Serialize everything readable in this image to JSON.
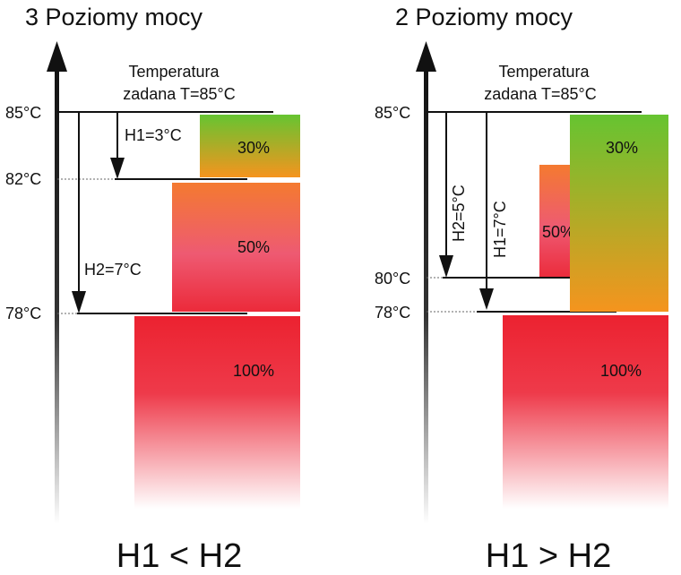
{
  "left_panel": {
    "title": "3 Poziomy mocy",
    "setpoint_line1": "Temperatura",
    "setpoint_line2": "zadana T=85°C",
    "temp_labels": [
      "85°C",
      "82°C",
      "78°C"
    ],
    "h1_label": "H1=3°C",
    "h2_label": "H2=7°C",
    "power_levels": [
      "30%",
      "50%",
      "100%"
    ],
    "comparison": "H1 < H2"
  },
  "right_panel": {
    "title": "2 Poziomy mocy",
    "setpoint_line1": "Temperatura",
    "setpoint_line2": "zadana T=85°C",
    "temp_labels": [
      "85°C",
      "80°C",
      "78°C"
    ],
    "h2_label": "H2=5°C",
    "h1_label": "H1=7°C",
    "power_levels": [
      "30%",
      "50%",
      "100%"
    ],
    "comparison": "H1 > H2"
  },
  "colors": {
    "green": "#66c431",
    "orange": "#f5941e",
    "pink": "#ee5a72",
    "red": "#ec2230"
  }
}
